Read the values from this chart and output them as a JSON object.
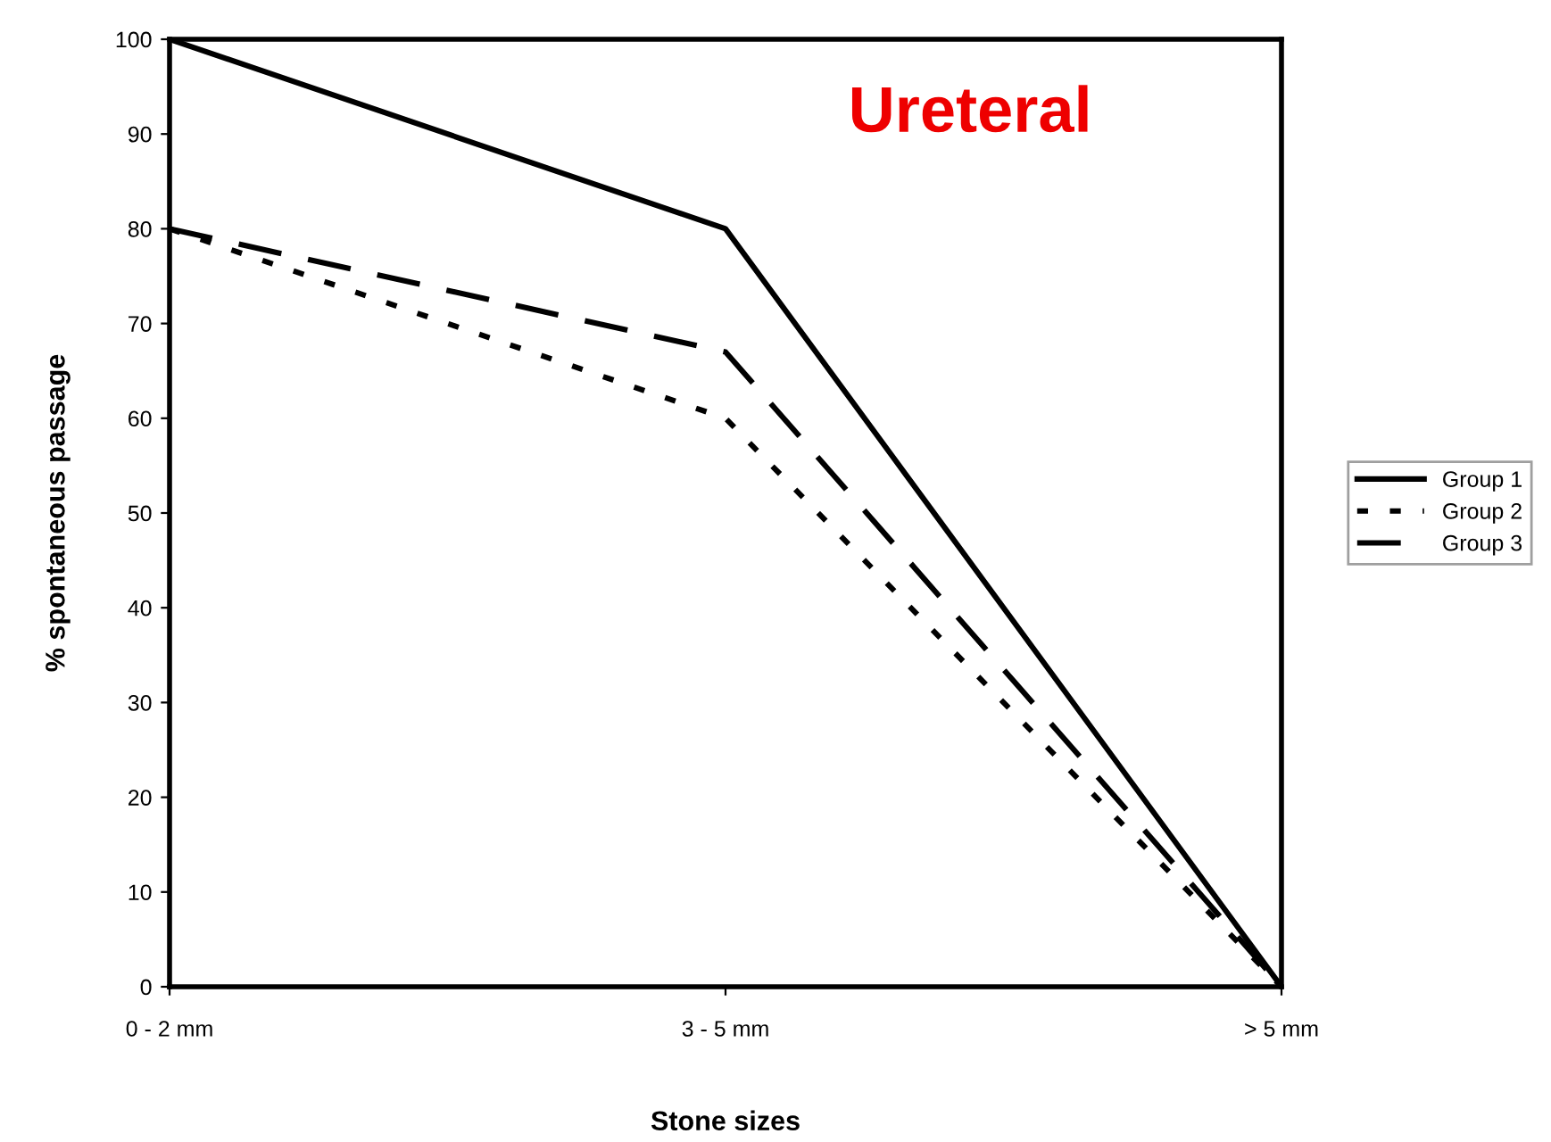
{
  "chart_data": {
    "type": "line",
    "title": "Ureteral",
    "xlabel": "Stone sizes",
    "ylabel": "% spontaneous passage",
    "categories": [
      "0 - 2 mm",
      "3 - 5 mm",
      "> 5 mm"
    ],
    "series": [
      {
        "name": "Group 1",
        "color": "#000000",
        "values": [
          100,
          80,
          0
        ],
        "line_style": "solid"
      },
      {
        "name": "Group 2",
        "color": "#000000",
        "values": [
          80,
          60,
          0
        ],
        "line_style": "dotted"
      },
      {
        "name": "Group 3",
        "color": "#000000",
        "values": [
          80,
          67,
          0
        ],
        "line_style": "dashed"
      }
    ],
    "ylim": [
      0,
      100
    ],
    "yticks": [
      0,
      10,
      20,
      30,
      40,
      50,
      60,
      70,
      80,
      90,
      100
    ],
    "grid": false,
    "legend": "right",
    "marker": "none"
  }
}
